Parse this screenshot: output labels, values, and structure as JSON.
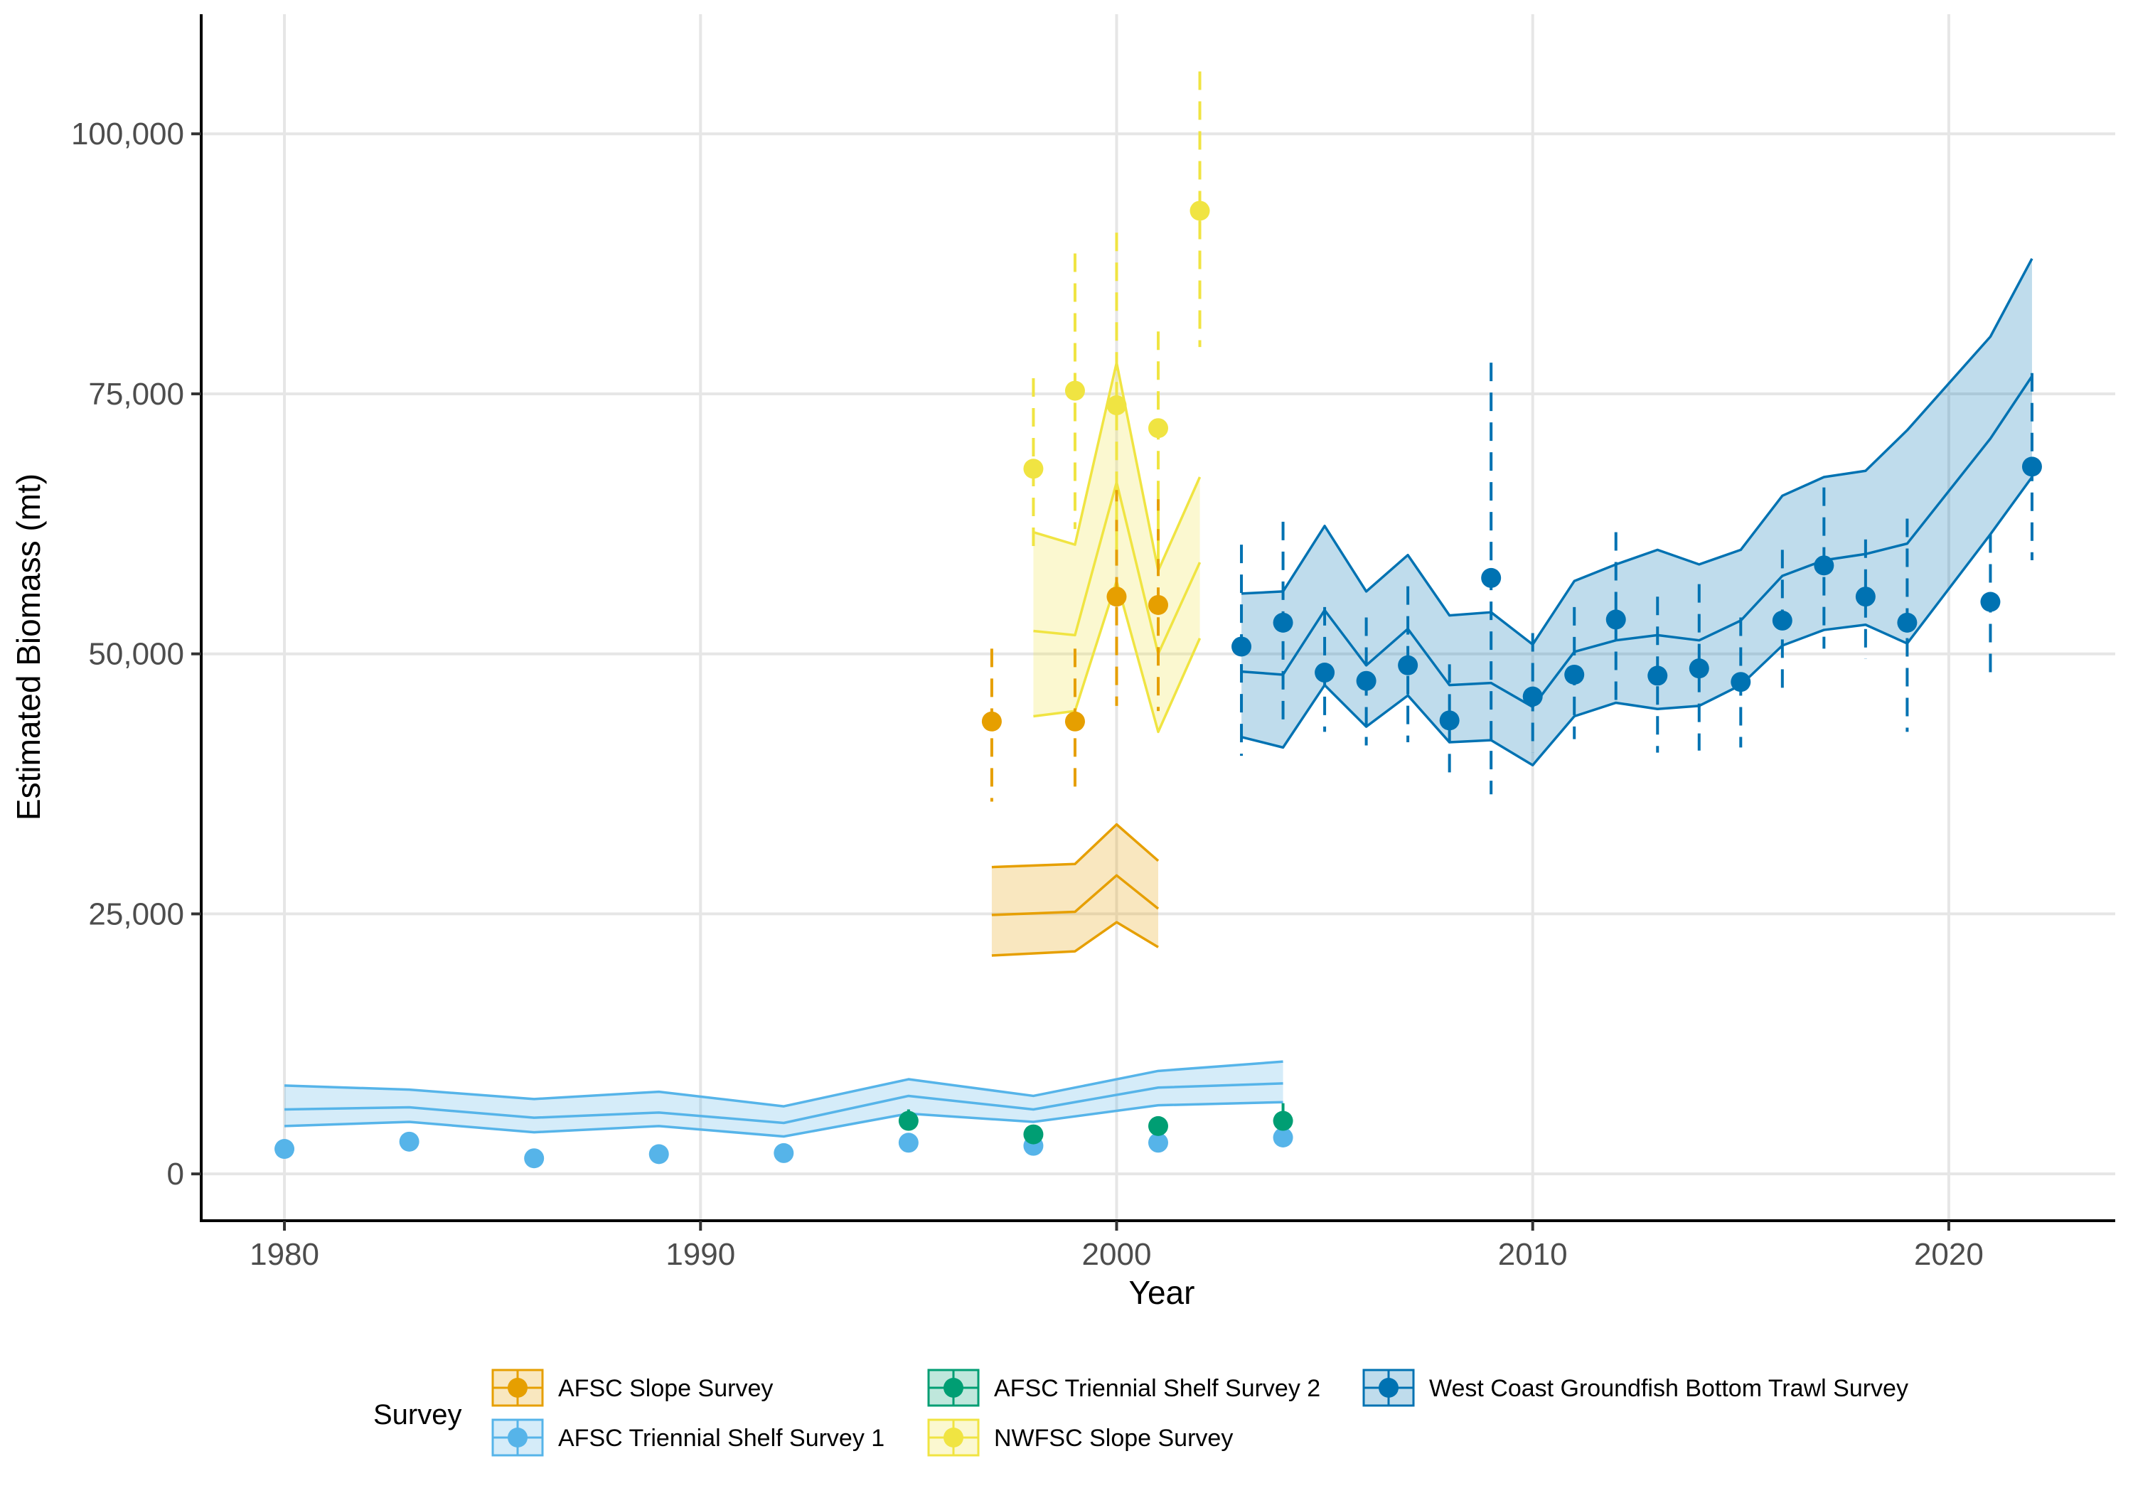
{
  "chart_data": {
    "type": "scatter",
    "title": "",
    "xlabel": "Year",
    "ylabel": "Estimated Biomass (mt)",
    "xlim": [
      1978,
      2024
    ],
    "ylim": [
      -4500,
      111500
    ],
    "x_ticks": [
      1980,
      1990,
      2000,
      2010,
      2020
    ],
    "x_tick_labels": [
      "1980",
      "1990",
      "2000",
      "2010",
      "2020"
    ],
    "y_ticks": [
      0,
      25000,
      50000,
      75000,
      100000
    ],
    "y_tick_labels": [
      "0",
      "25,000",
      "50,000",
      "75,000",
      "100,000"
    ],
    "grid": true,
    "legend": {
      "title": "Survey",
      "position": "bottom",
      "items": [
        "AFSC Slope Survey",
        "AFSC Triennial Shelf Survey 1",
        "AFSC Triennial Shelf Survey 2",
        "NWFSC Slope Survey",
        "West Coast Groundfish Bottom Trawl Survey"
      ]
    },
    "series": [
      {
        "name": "AFSC Slope Survey",
        "color": "#E69F00",
        "points": [
          {
            "x": 1997,
            "y": 43500,
            "lo": 35800,
            "hi": 50500
          },
          {
            "x": 1999,
            "y": 43500,
            "lo": 36200,
            "hi": 50500
          },
          {
            "x": 2000,
            "y": 55500,
            "lo": 45000,
            "hi": 66000
          },
          {
            "x": 2001,
            "y": 54700,
            "lo": 44500,
            "hi": 65000
          }
        ],
        "fit": {
          "x": [
            1997,
            1999,
            2000,
            2001
          ],
          "mid": [
            24900,
            25200,
            28700,
            25500
          ],
          "lo": [
            21000,
            21400,
            24200,
            21800
          ],
          "hi": [
            29500,
            29800,
            33600,
            30100
          ]
        }
      },
      {
        "name": "AFSC Triennial Shelf Survey 1",
        "color": "#56B4E9",
        "points": [
          {
            "x": 1980,
            "y": 2400,
            "lo": 1800,
            "hi": 3000
          },
          {
            "x": 1983,
            "y": 3100,
            "lo": 2400,
            "hi": 3800
          },
          {
            "x": 1986,
            "y": 1500,
            "lo": 1000,
            "hi": 2000
          },
          {
            "x": 1989,
            "y": 1900,
            "lo": 1400,
            "hi": 2400
          },
          {
            "x": 1992,
            "y": 2000,
            "lo": 1500,
            "hi": 2500
          },
          {
            "x": 1995,
            "y": 3000,
            "lo": 2200,
            "hi": 3800
          },
          {
            "x": 1998,
            "y": 2700,
            "lo": 2000,
            "hi": 3400
          },
          {
            "x": 2001,
            "y": 3000,
            "lo": 2300,
            "hi": 3700
          },
          {
            "x": 2004,
            "y": 3500,
            "lo": 2200,
            "hi": 4800
          }
        ],
        "fit": {
          "x": [
            1980,
            1983,
            1986,
            1989,
            1992,
            1995,
            1998,
            2001,
            2004
          ],
          "mid": [
            6200,
            6400,
            5400,
            5900,
            4900,
            7500,
            6200,
            8300,
            8700
          ],
          "lo": [
            4600,
            5000,
            4000,
            4600,
            3600,
            5800,
            5000,
            6600,
            6900
          ],
          "hi": [
            8500,
            8100,
            7200,
            7900,
            6500,
            9100,
            7500,
            9900,
            10800
          ]
        }
      },
      {
        "name": "AFSC Triennial Shelf Survey 2",
        "color": "#009E73",
        "points": [
          {
            "x": 1995,
            "y": 5100,
            "lo": 4200,
            "hi": 6200
          },
          {
            "x": 1998,
            "y": 3800,
            "lo": 3100,
            "hi": 4500
          },
          {
            "x": 2001,
            "y": 4600,
            "lo": 3900,
            "hi": 5300
          },
          {
            "x": 2004,
            "y": 5100,
            "lo": 3800,
            "hi": 6800
          }
        ]
      },
      {
        "name": "NWFSC Slope Survey",
        "color": "#F0E442",
        "points": [
          {
            "x": 1998,
            "y": 67800,
            "lo": 59500,
            "hi": 76500
          },
          {
            "x": 1999,
            "y": 75300,
            "lo": 62000,
            "hi": 88500
          },
          {
            "x": 2000,
            "y": 73900,
            "lo": 60000,
            "hi": 90500
          },
          {
            "x": 2001,
            "y": 71700,
            "lo": 59000,
            "hi": 81000
          },
          {
            "x": 2002,
            "y": 92600,
            "lo": 79500,
            "hi": 106000
          }
        ],
        "fit": {
          "x": [
            1998,
            1999,
            2000,
            2001,
            2002
          ],
          "mid": [
            52200,
            51800,
            66500,
            50000,
            58800
          ],
          "lo": [
            44000,
            44500,
            57000,
            42500,
            51500
          ],
          "hi": [
            61700,
            60500,
            78000,
            58000,
            67000
          ]
        }
      },
      {
        "name": "West Coast Groundfish Bottom Trawl Survey",
        "color": "#0072B2",
        "points": [
          {
            "x": 2003,
            "y": 50700,
            "lo": 40200,
            "hi": 60500
          },
          {
            "x": 2004,
            "y": 53000,
            "lo": 43000,
            "hi": 62700
          },
          {
            "x": 2005,
            "y": 48200,
            "lo": 42500,
            "hi": 54500
          },
          {
            "x": 2006,
            "y": 47400,
            "lo": 41200,
            "hi": 53500
          },
          {
            "x": 2007,
            "y": 48900,
            "lo": 41500,
            "hi": 56500
          },
          {
            "x": 2008,
            "y": 43600,
            "lo": 38500,
            "hi": 49000
          },
          {
            "x": 2009,
            "y": 57300,
            "lo": 36500,
            "hi": 78000
          },
          {
            "x": 2010,
            "y": 45900,
            "lo": 40500,
            "hi": 52000
          },
          {
            "x": 2011,
            "y": 48000,
            "lo": 41800,
            "hi": 54500
          },
          {
            "x": 2012,
            "y": 53300,
            "lo": 44500,
            "hi": 61700
          },
          {
            "x": 2013,
            "y": 47900,
            "lo": 40500,
            "hi": 55500
          },
          {
            "x": 2014,
            "y": 48600,
            "lo": 40700,
            "hi": 56700
          },
          {
            "x": 2015,
            "y": 47300,
            "lo": 41000,
            "hi": 53500
          },
          {
            "x": 2016,
            "y": 53200,
            "lo": 45800,
            "hi": 60000
          },
          {
            "x": 2017,
            "y": 58500,
            "lo": 50500,
            "hi": 66000
          },
          {
            "x": 2018,
            "y": 55500,
            "lo": 49500,
            "hi": 61000
          },
          {
            "x": 2019,
            "y": 53000,
            "lo": 42500,
            "hi": 63000
          },
          {
            "x": 2021,
            "y": 55000,
            "lo": 48000,
            "hi": 61500
          },
          {
            "x": 2022,
            "y": 68000,
            "lo": 59000,
            "hi": 77000
          }
        ],
        "fit": {
          "x": [
            2003,
            2004,
            2005,
            2006,
            2007,
            2008,
            2009,
            2010,
            2011,
            2012,
            2013,
            2014,
            2015,
            2016,
            2017,
            2018,
            2019,
            2021,
            2022
          ],
          "mid": [
            48300,
            48000,
            54200,
            48900,
            52400,
            47000,
            47200,
            44900,
            50200,
            51300,
            51800,
            51300,
            53200,
            57500,
            59000,
            59600,
            60600,
            70700,
            76700
          ],
          "lo": [
            42000,
            41000,
            47000,
            43000,
            46000,
            41500,
            41700,
            39300,
            44000,
            45300,
            44700,
            45000,
            47000,
            50800,
            52300,
            52800,
            51000,
            61500,
            67000
          ],
          "hi": [
            55800,
            56000,
            62300,
            56000,
            59500,
            53700,
            54000,
            50900,
            57000,
            58600,
            60000,
            58600,
            60000,
            65200,
            67000,
            67600,
            71500,
            80500,
            88000
          ]
        }
      }
    ]
  }
}
